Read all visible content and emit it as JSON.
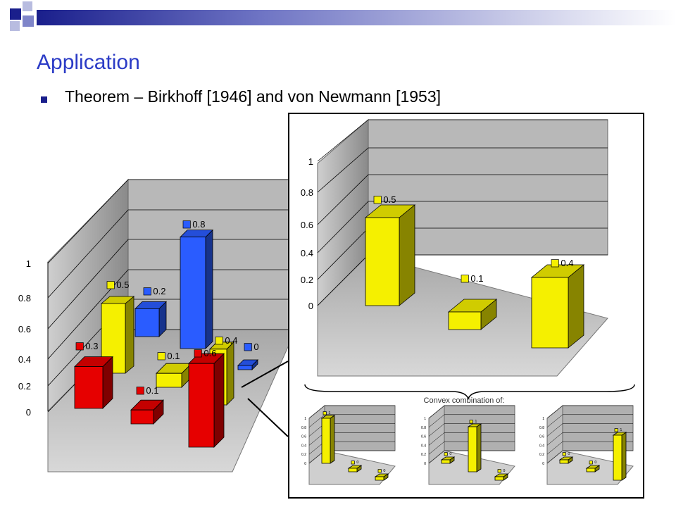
{
  "slide": {
    "title": "Application",
    "bullet": "Theorem – Birkhoff [1946] and von Newmann [1953]",
    "convex_label": "Convex combination of:"
  },
  "colors": {
    "title": "#2b3bc6",
    "bullet": "#1a1f8c",
    "red": "#e60000",
    "yellow": "#f5f000",
    "blue": "#2a5cff",
    "navy": "#1a1f8c"
  },
  "chart_data": [
    {
      "type": "bar",
      "subtype": "3d-grid",
      "grid": "3x3",
      "ytick_labels": [
        "0",
        "0.2",
        "0.4",
        "0.6",
        "0.8",
        "1"
      ],
      "ylim": [
        0,
        1
      ],
      "series": [
        {
          "color": "red",
          "values": [
            0.3,
            0.1,
            0.6
          ]
        },
        {
          "color": "yellow",
          "values": [
            0.5,
            0.1,
            0.4
          ]
        },
        {
          "color": "blue",
          "values": [
            0.2,
            0.8,
            0
          ]
        }
      ],
      "value_labels": [
        "0.3",
        "0.1",
        "0.6",
        "0.5",
        "0.1",
        "0.4",
        "0.2",
        "0.8",
        "0"
      ]
    },
    {
      "type": "bar",
      "subtype": "3d",
      "ytick_labels": [
        "0",
        "0.2",
        "0.4",
        "0.6",
        "0.8",
        "1"
      ],
      "ylim": [
        0,
        1
      ],
      "values": [
        0.5,
        0.1,
        0.4
      ],
      "value_labels": [
        "0.5",
        "0.1",
        "0.4"
      ]
    },
    {
      "type": "bar",
      "subtype": "3d-small",
      "values": [
        1,
        0,
        0
      ],
      "value_labels": [
        "1",
        "0",
        "0"
      ],
      "ytick_labels": [
        "0",
        "0.2",
        "0.4",
        "0.6",
        "0.8",
        "1"
      ],
      "ylim": [
        0,
        1
      ]
    },
    {
      "type": "bar",
      "subtype": "3d-small",
      "values": [
        0,
        1,
        0
      ],
      "value_labels": [
        "0",
        "1",
        "0"
      ],
      "ytick_labels": [
        "0",
        "0.2",
        "0.4",
        "0.6",
        "0.8",
        "1"
      ],
      "ylim": [
        0,
        1
      ]
    },
    {
      "type": "bar",
      "subtype": "3d-small",
      "values": [
        0,
        0,
        1
      ],
      "value_labels": [
        "0",
        "0",
        "1"
      ],
      "ytick_labels": [
        "0",
        "0.2",
        "0.4",
        "0.6",
        "0.8",
        "1"
      ],
      "ylim": [
        0,
        1
      ]
    }
  ]
}
